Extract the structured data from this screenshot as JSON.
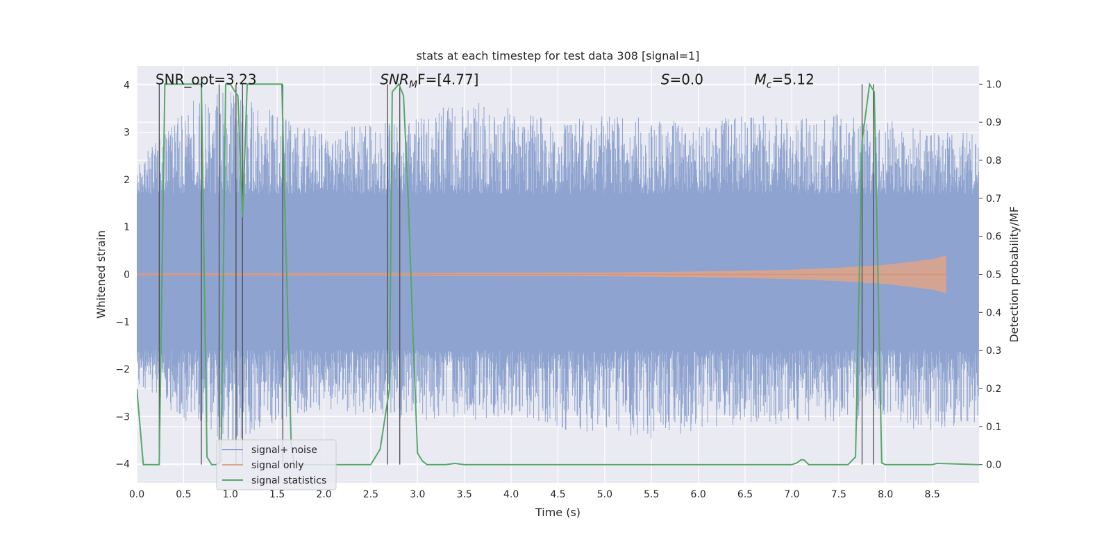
{
  "chart_data": {
    "type": "line",
    "title": "stats at each timestep for test data 308 [signal=1]",
    "xlabel": "Time (s)",
    "ylabel": "Whitened strain",
    "y2label": "Detection probability/MF",
    "xlim": [
      0,
      9.0
    ],
    "ylim": [
      -4.4,
      4.4
    ],
    "y2lim": [
      -0.048,
      1.048
    ],
    "xticks": [
      0.0,
      0.5,
      1.0,
      1.5,
      2.0,
      2.5,
      3.0,
      3.5,
      4.0,
      4.5,
      5.0,
      5.5,
      6.0,
      6.5,
      7.0,
      7.5,
      8.0,
      8.5
    ],
    "xtick_labels": [
      "0.0",
      "0.5",
      "1.0",
      "1.5",
      "2.0",
      "2.5",
      "3.0",
      "3.5",
      "4.0",
      "4.5",
      "5.0",
      "5.5",
      "6.0",
      "6.5",
      "7.0",
      "7.5",
      "8.0",
      "8.5"
    ],
    "yticks": [
      -4,
      -3,
      -2,
      -1,
      0,
      1,
      2,
      3,
      4
    ],
    "ytick_labels": [
      "−4",
      "−3",
      "−2",
      "−1",
      "0",
      "1",
      "2",
      "3",
      "4"
    ],
    "y2ticks": [
      0.0,
      0.1,
      0.2,
      0.3,
      0.4,
      0.5,
      0.6,
      0.7,
      0.8,
      0.9,
      1.0
    ],
    "y2tick_labels": [
      "0.0",
      "0.1",
      "0.2",
      "0.3",
      "0.4",
      "0.5",
      "0.6",
      "0.7",
      "0.8",
      "0.9",
      "1.0"
    ],
    "annotations": [
      {
        "text": "SNR_opt=3.23",
        "x": 0.2,
        "y": 4.0
      },
      {
        "text": "SNR",
        "sub": "M",
        "tail": "F=[4.77]",
        "x": 2.6,
        "y": 4.0
      },
      {
        "text": "S",
        "tail": "=0.0",
        "x": 5.6,
        "y": 4.0
      },
      {
        "text": "M",
        "sub": "c",
        "tail": "=5.12",
        "x": 6.6,
        "y": 4.0
      }
    ],
    "legend": {
      "position": "lower-left",
      "entries": [
        {
          "label": "signal+ noise",
          "color": "#8ea3cf"
        },
        {
          "label": "signal only",
          "color": "#e0a488"
        },
        {
          "label": "signal statistics",
          "color": "#55a868"
        }
      ]
    },
    "series": [
      {
        "name": "signal+ noise",
        "axis": "left",
        "color": "#8ea3cf",
        "kind": "noise-band",
        "upper_envelope": [
          [
            0.0,
            2.3
          ],
          [
            0.5,
            3.6
          ],
          [
            1.0,
            3.9
          ],
          [
            1.5,
            3.4
          ],
          [
            2.0,
            3.0
          ],
          [
            2.5,
            3.2
          ],
          [
            3.0,
            3.3
          ],
          [
            3.5,
            3.7
          ],
          [
            4.0,
            3.5
          ],
          [
            4.5,
            3.2
          ],
          [
            5.0,
            3.4
          ],
          [
            5.5,
            3.3
          ],
          [
            6.0,
            3.2
          ],
          [
            6.5,
            3.4
          ],
          [
            7.0,
            3.3
          ],
          [
            7.5,
            3.4
          ],
          [
            8.0,
            3.3
          ],
          [
            8.5,
            3.0
          ],
          [
            9.0,
            3.0
          ]
        ],
        "lower_envelope": [
          [
            0.0,
            -2.3
          ],
          [
            0.5,
            -3.1
          ],
          [
            1.0,
            -3.6
          ],
          [
            1.5,
            -3.1
          ],
          [
            2.0,
            -2.9
          ],
          [
            2.5,
            -3.0
          ],
          [
            3.0,
            -3.1
          ],
          [
            3.5,
            -3.1
          ],
          [
            4.0,
            -3.0
          ],
          [
            4.5,
            -3.3
          ],
          [
            5.0,
            -3.4
          ],
          [
            5.5,
            -3.5
          ],
          [
            6.0,
            -3.3
          ],
          [
            6.5,
            -3.2
          ],
          [
            7.0,
            -3.2
          ],
          [
            7.5,
            -3.1
          ],
          [
            8.0,
            -3.2
          ],
          [
            8.5,
            -3.3
          ],
          [
            9.0,
            -3.1
          ]
        ]
      },
      {
        "name": "signal only",
        "axis": "left",
        "color": "#e0a488",
        "kind": "chirp-envelope",
        "amplitude": [
          [
            0.0,
            0.02
          ],
          [
            3.0,
            0.03
          ],
          [
            5.0,
            0.04
          ],
          [
            6.0,
            0.06
          ],
          [
            7.0,
            0.1
          ],
          [
            7.5,
            0.14
          ],
          [
            8.0,
            0.2
          ],
          [
            8.5,
            0.32
          ],
          [
            8.65,
            0.4
          ]
        ]
      },
      {
        "name": "signal statistics",
        "axis": "right",
        "color": "#55a868",
        "kind": "line",
        "x": [
          0.0,
          0.07,
          0.1,
          0.2,
          0.24,
          0.3,
          0.5,
          0.69,
          0.75,
          0.8,
          0.85,
          0.9,
          0.95,
          1.0,
          1.05,
          1.08,
          1.13,
          1.18,
          1.2,
          1.55,
          1.58,
          1.65,
          1.68,
          1.75,
          2.0,
          2.5,
          2.6,
          2.7,
          2.73,
          2.8,
          2.85,
          2.9,
          2.95,
          3.0,
          3.05,
          3.1,
          3.2,
          3.3,
          3.4,
          3.5,
          4.0,
          5.0,
          6.0,
          7.0,
          7.05,
          7.1,
          7.13,
          7.18,
          7.3,
          7.6,
          7.68,
          7.75,
          7.83,
          7.88,
          7.92,
          7.96,
          8.0,
          8.5,
          8.55,
          9.0
        ],
        "y": [
          0.2,
          0.0,
          0.0,
          0.0,
          0.0,
          1.0,
          1.0,
          1.0,
          0.02,
          0.0,
          0.0,
          0.01,
          1.0,
          1.0,
          0.98,
          0.97,
          0.65,
          1.0,
          1.0,
          1.0,
          0.7,
          0.05,
          0.0,
          0.0,
          0.0,
          0.0,
          0.04,
          0.2,
          0.98,
          1.0,
          0.97,
          0.7,
          0.35,
          0.03,
          0.01,
          0.0,
          0.0,
          0.0,
          0.003,
          0.0,
          0.0,
          0.0,
          0.0,
          0.0,
          0.004,
          0.013,
          0.012,
          0.0,
          0.0,
          0.0,
          0.02,
          0.85,
          1.0,
          0.98,
          0.5,
          0.004,
          0.0,
          0.0,
          0.003,
          0.0
        ]
      }
    ],
    "vertical_markers": {
      "color": "#4d4d4d",
      "x": [
        0.24,
        0.69,
        0.88,
        1.06,
        1.13,
        1.56,
        2.68,
        2.81,
        7.75,
        7.87
      ]
    }
  }
}
